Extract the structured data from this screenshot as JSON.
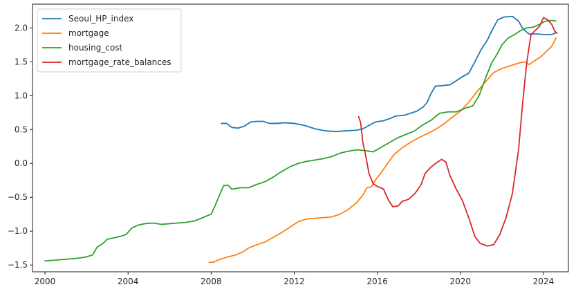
{
  "chart_data": {
    "type": "line",
    "title": "",
    "xlabel": "",
    "ylabel": "",
    "xlim": [
      1999.4,
      2025.2
    ],
    "ylim": [
      -1.6,
      2.35
    ],
    "x_ticks": [
      2000,
      2004,
      2008,
      2012,
      2016,
      2020,
      2024
    ],
    "x_tick_labels": [
      "2000",
      "2004",
      "2008",
      "2012",
      "2016",
      "2020",
      "2024"
    ],
    "y_ticks": [
      -1.5,
      -1.0,
      -0.5,
      0.0,
      0.5,
      1.0,
      1.5,
      2.0
    ],
    "y_tick_labels": [
      "−1.5",
      "−1.0",
      "−0.5",
      "0.0",
      "0.5",
      "1.0",
      "1.5",
      "2.0"
    ],
    "grid": false,
    "legend_position": "top-left",
    "series": [
      {
        "name": "Seoul_HP_index",
        "color": "#1f77b4",
        "points": [
          [
            2008.5,
            0.59
          ],
          [
            2008.75,
            0.59
          ],
          [
            2009.0,
            0.53
          ],
          [
            2009.3,
            0.52
          ],
          [
            2009.6,
            0.55
          ],
          [
            2009.9,
            0.61
          ],
          [
            2010.2,
            0.62
          ],
          [
            2010.5,
            0.62
          ],
          [
            2010.8,
            0.59
          ],
          [
            2011.2,
            0.59
          ],
          [
            2011.5,
            0.6
          ],
          [
            2012.0,
            0.59
          ],
          [
            2012.5,
            0.56
          ],
          [
            2013.0,
            0.51
          ],
          [
            2013.5,
            0.48
          ],
          [
            2014.0,
            0.47
          ],
          [
            2014.5,
            0.48
          ],
          [
            2015.0,
            0.49
          ],
          [
            2015.3,
            0.51
          ],
          [
            2015.6,
            0.56
          ],
          [
            2015.9,
            0.61
          ],
          [
            2016.3,
            0.63
          ],
          [
            2016.6,
            0.66
          ],
          [
            2016.9,
            0.7
          ],
          [
            2017.3,
            0.71
          ],
          [
            2017.6,
            0.74
          ],
          [
            2017.9,
            0.77
          ],
          [
            2018.2,
            0.83
          ],
          [
            2018.4,
            0.9
          ],
          [
            2018.6,
            1.04
          ],
          [
            2018.8,
            1.14
          ],
          [
            2019.2,
            1.15
          ],
          [
            2019.5,
            1.16
          ],
          [
            2019.8,
            1.22
          ],
          [
            2020.1,
            1.28
          ],
          [
            2020.4,
            1.33
          ],
          [
            2020.7,
            1.5
          ],
          [
            2021.0,
            1.68
          ],
          [
            2021.3,
            1.82
          ],
          [
            2021.5,
            1.95
          ],
          [
            2021.8,
            2.12
          ],
          [
            2022.1,
            2.16
          ],
          [
            2022.5,
            2.17
          ],
          [
            2022.8,
            2.1
          ],
          [
            2023.0,
            1.99
          ],
          [
            2023.3,
            1.91
          ],
          [
            2023.7,
            1.91
          ],
          [
            2024.1,
            1.9
          ],
          [
            2024.4,
            1.9
          ],
          [
            2024.6,
            1.93
          ]
        ]
      },
      {
        "name": "mortgage",
        "color": "#ff7f0e",
        "points": [
          [
            2007.9,
            -1.46
          ],
          [
            2008.1,
            -1.46
          ],
          [
            2008.4,
            -1.42
          ],
          [
            2008.8,
            -1.38
          ],
          [
            2009.2,
            -1.35
          ],
          [
            2009.5,
            -1.31
          ],
          [
            2009.8,
            -1.25
          ],
          [
            2010.2,
            -1.2
          ],
          [
            2010.6,
            -1.16
          ],
          [
            2011.0,
            -1.09
          ],
          [
            2011.4,
            -1.02
          ],
          [
            2011.8,
            -0.94
          ],
          [
            2012.2,
            -0.86
          ],
          [
            2012.6,
            -0.82
          ],
          [
            2013.0,
            -0.81
          ],
          [
            2013.4,
            -0.8
          ],
          [
            2013.8,
            -0.79
          ],
          [
            2014.2,
            -0.75
          ],
          [
            2014.6,
            -0.68
          ],
          [
            2015.0,
            -0.58
          ],
          [
            2015.3,
            -0.47
          ],
          [
            2015.5,
            -0.36
          ],
          [
            2015.7,
            -0.35
          ],
          [
            2015.9,
            -0.25
          ],
          [
            2016.2,
            -0.13
          ],
          [
            2016.5,
            0.0
          ],
          [
            2016.8,
            0.13
          ],
          [
            2017.2,
            0.23
          ],
          [
            2017.6,
            0.31
          ],
          [
            2018.0,
            0.38
          ],
          [
            2018.4,
            0.44
          ],
          [
            2018.8,
            0.5
          ],
          [
            2019.2,
            0.58
          ],
          [
            2019.6,
            0.68
          ],
          [
            2020.0,
            0.77
          ],
          [
            2020.4,
            0.9
          ],
          [
            2020.8,
            1.06
          ],
          [
            2021.2,
            1.2
          ],
          [
            2021.6,
            1.34
          ],
          [
            2022.0,
            1.4
          ],
          [
            2022.4,
            1.44
          ],
          [
            2022.8,
            1.48
          ],
          [
            2023.1,
            1.5
          ],
          [
            2023.3,
            1.46
          ],
          [
            2023.6,
            1.52
          ],
          [
            2023.9,
            1.58
          ],
          [
            2024.2,
            1.67
          ],
          [
            2024.4,
            1.73
          ],
          [
            2024.6,
            1.85
          ]
        ]
      },
      {
        "name": "housing_cost",
        "color": "#2ca02c",
        "points": [
          [
            2000.0,
            -1.44
          ],
          [
            2000.4,
            -1.43
          ],
          [
            2000.8,
            -1.42
          ],
          [
            2001.2,
            -1.41
          ],
          [
            2001.6,
            -1.4
          ],
          [
            2002.0,
            -1.38
          ],
          [
            2002.3,
            -1.35
          ],
          [
            2002.5,
            -1.24
          ],
          [
            2002.8,
            -1.18
          ],
          [
            2003.0,
            -1.12
          ],
          [
            2003.3,
            -1.1
          ],
          [
            2003.6,
            -1.08
          ],
          [
            2003.9,
            -1.05
          ],
          [
            2004.2,
            -0.95
          ],
          [
            2004.5,
            -0.91
          ],
          [
            2004.8,
            -0.89
          ],
          [
            2005.2,
            -0.88
          ],
          [
            2005.6,
            -0.9
          ],
          [
            2006.0,
            -0.89
          ],
          [
            2006.4,
            -0.88
          ],
          [
            2006.8,
            -0.87
          ],
          [
            2007.2,
            -0.85
          ],
          [
            2007.6,
            -0.8
          ],
          [
            2008.0,
            -0.75
          ],
          [
            2008.2,
            -0.62
          ],
          [
            2008.4,
            -0.47
          ],
          [
            2008.6,
            -0.33
          ],
          [
            2008.8,
            -0.32
          ],
          [
            2009.0,
            -0.38
          ],
          [
            2009.4,
            -0.36
          ],
          [
            2009.8,
            -0.36
          ],
          [
            2010.2,
            -0.31
          ],
          [
            2010.6,
            -0.27
          ],
          [
            2011.0,
            -0.2
          ],
          [
            2011.4,
            -0.12
          ],
          [
            2011.8,
            -0.05
          ],
          [
            2012.2,
            0.0
          ],
          [
            2012.6,
            0.03
          ],
          [
            2013.0,
            0.05
          ],
          [
            2013.4,
            0.07
          ],
          [
            2013.8,
            0.1
          ],
          [
            2014.2,
            0.15
          ],
          [
            2014.6,
            0.18
          ],
          [
            2015.0,
            0.2
          ],
          [
            2015.4,
            0.19
          ],
          [
            2015.8,
            0.17
          ],
          [
            2016.2,
            0.24
          ],
          [
            2016.6,
            0.31
          ],
          [
            2017.0,
            0.38
          ],
          [
            2017.4,
            0.43
          ],
          [
            2017.8,
            0.48
          ],
          [
            2018.2,
            0.57
          ],
          [
            2018.6,
            0.64
          ],
          [
            2019.0,
            0.74
          ],
          [
            2019.4,
            0.76
          ],
          [
            2019.8,
            0.76
          ],
          [
            2020.2,
            0.81
          ],
          [
            2020.6,
            0.85
          ],
          [
            2020.9,
            1.0
          ],
          [
            2021.2,
            1.25
          ],
          [
            2021.5,
            1.48
          ],
          [
            2021.8,
            1.63
          ],
          [
            2022.0,
            1.75
          ],
          [
            2022.3,
            1.85
          ],
          [
            2022.6,
            1.9
          ],
          [
            2022.9,
            1.96
          ],
          [
            2023.2,
            2.0
          ],
          [
            2023.5,
            2.01
          ],
          [
            2023.8,
            2.05
          ],
          [
            2024.1,
            2.1
          ],
          [
            2024.4,
            2.11
          ],
          [
            2024.6,
            2.1
          ]
        ]
      },
      {
        "name": "mortgage_rate_balances",
        "color": "#d62728",
        "points": [
          [
            2015.1,
            0.69
          ],
          [
            2015.2,
            0.6
          ],
          [
            2015.3,
            0.32
          ],
          [
            2015.45,
            0.1
          ],
          [
            2015.6,
            -0.15
          ],
          [
            2015.8,
            -0.3
          ],
          [
            2016.0,
            -0.34
          ],
          [
            2016.3,
            -0.38
          ],
          [
            2016.55,
            -0.55
          ],
          [
            2016.75,
            -0.64
          ],
          [
            2017.0,
            -0.63
          ],
          [
            2017.2,
            -0.56
          ],
          [
            2017.5,
            -0.53
          ],
          [
            2017.8,
            -0.45
          ],
          [
            2018.1,
            -0.32
          ],
          [
            2018.3,
            -0.15
          ],
          [
            2018.6,
            -0.05
          ],
          [
            2018.9,
            0.02
          ],
          [
            2019.1,
            0.06
          ],
          [
            2019.3,
            0.02
          ],
          [
            2019.5,
            -0.18
          ],
          [
            2019.8,
            -0.38
          ],
          [
            2020.1,
            -0.55
          ],
          [
            2020.4,
            -0.8
          ],
          [
            2020.7,
            -1.08
          ],
          [
            2020.95,
            -1.18
          ],
          [
            2021.3,
            -1.22
          ],
          [
            2021.6,
            -1.2
          ],
          [
            2021.9,
            -1.05
          ],
          [
            2022.2,
            -0.8
          ],
          [
            2022.5,
            -0.45
          ],
          [
            2022.8,
            0.2
          ],
          [
            2023.0,
            0.9
          ],
          [
            2023.2,
            1.5
          ],
          [
            2023.4,
            1.9
          ],
          [
            2023.6,
            1.96
          ],
          [
            2023.8,
            2.02
          ],
          [
            2024.0,
            2.15
          ],
          [
            2024.2,
            2.12
          ],
          [
            2024.4,
            2.05
          ],
          [
            2024.55,
            1.95
          ],
          [
            2024.65,
            1.92
          ]
        ]
      }
    ]
  }
}
